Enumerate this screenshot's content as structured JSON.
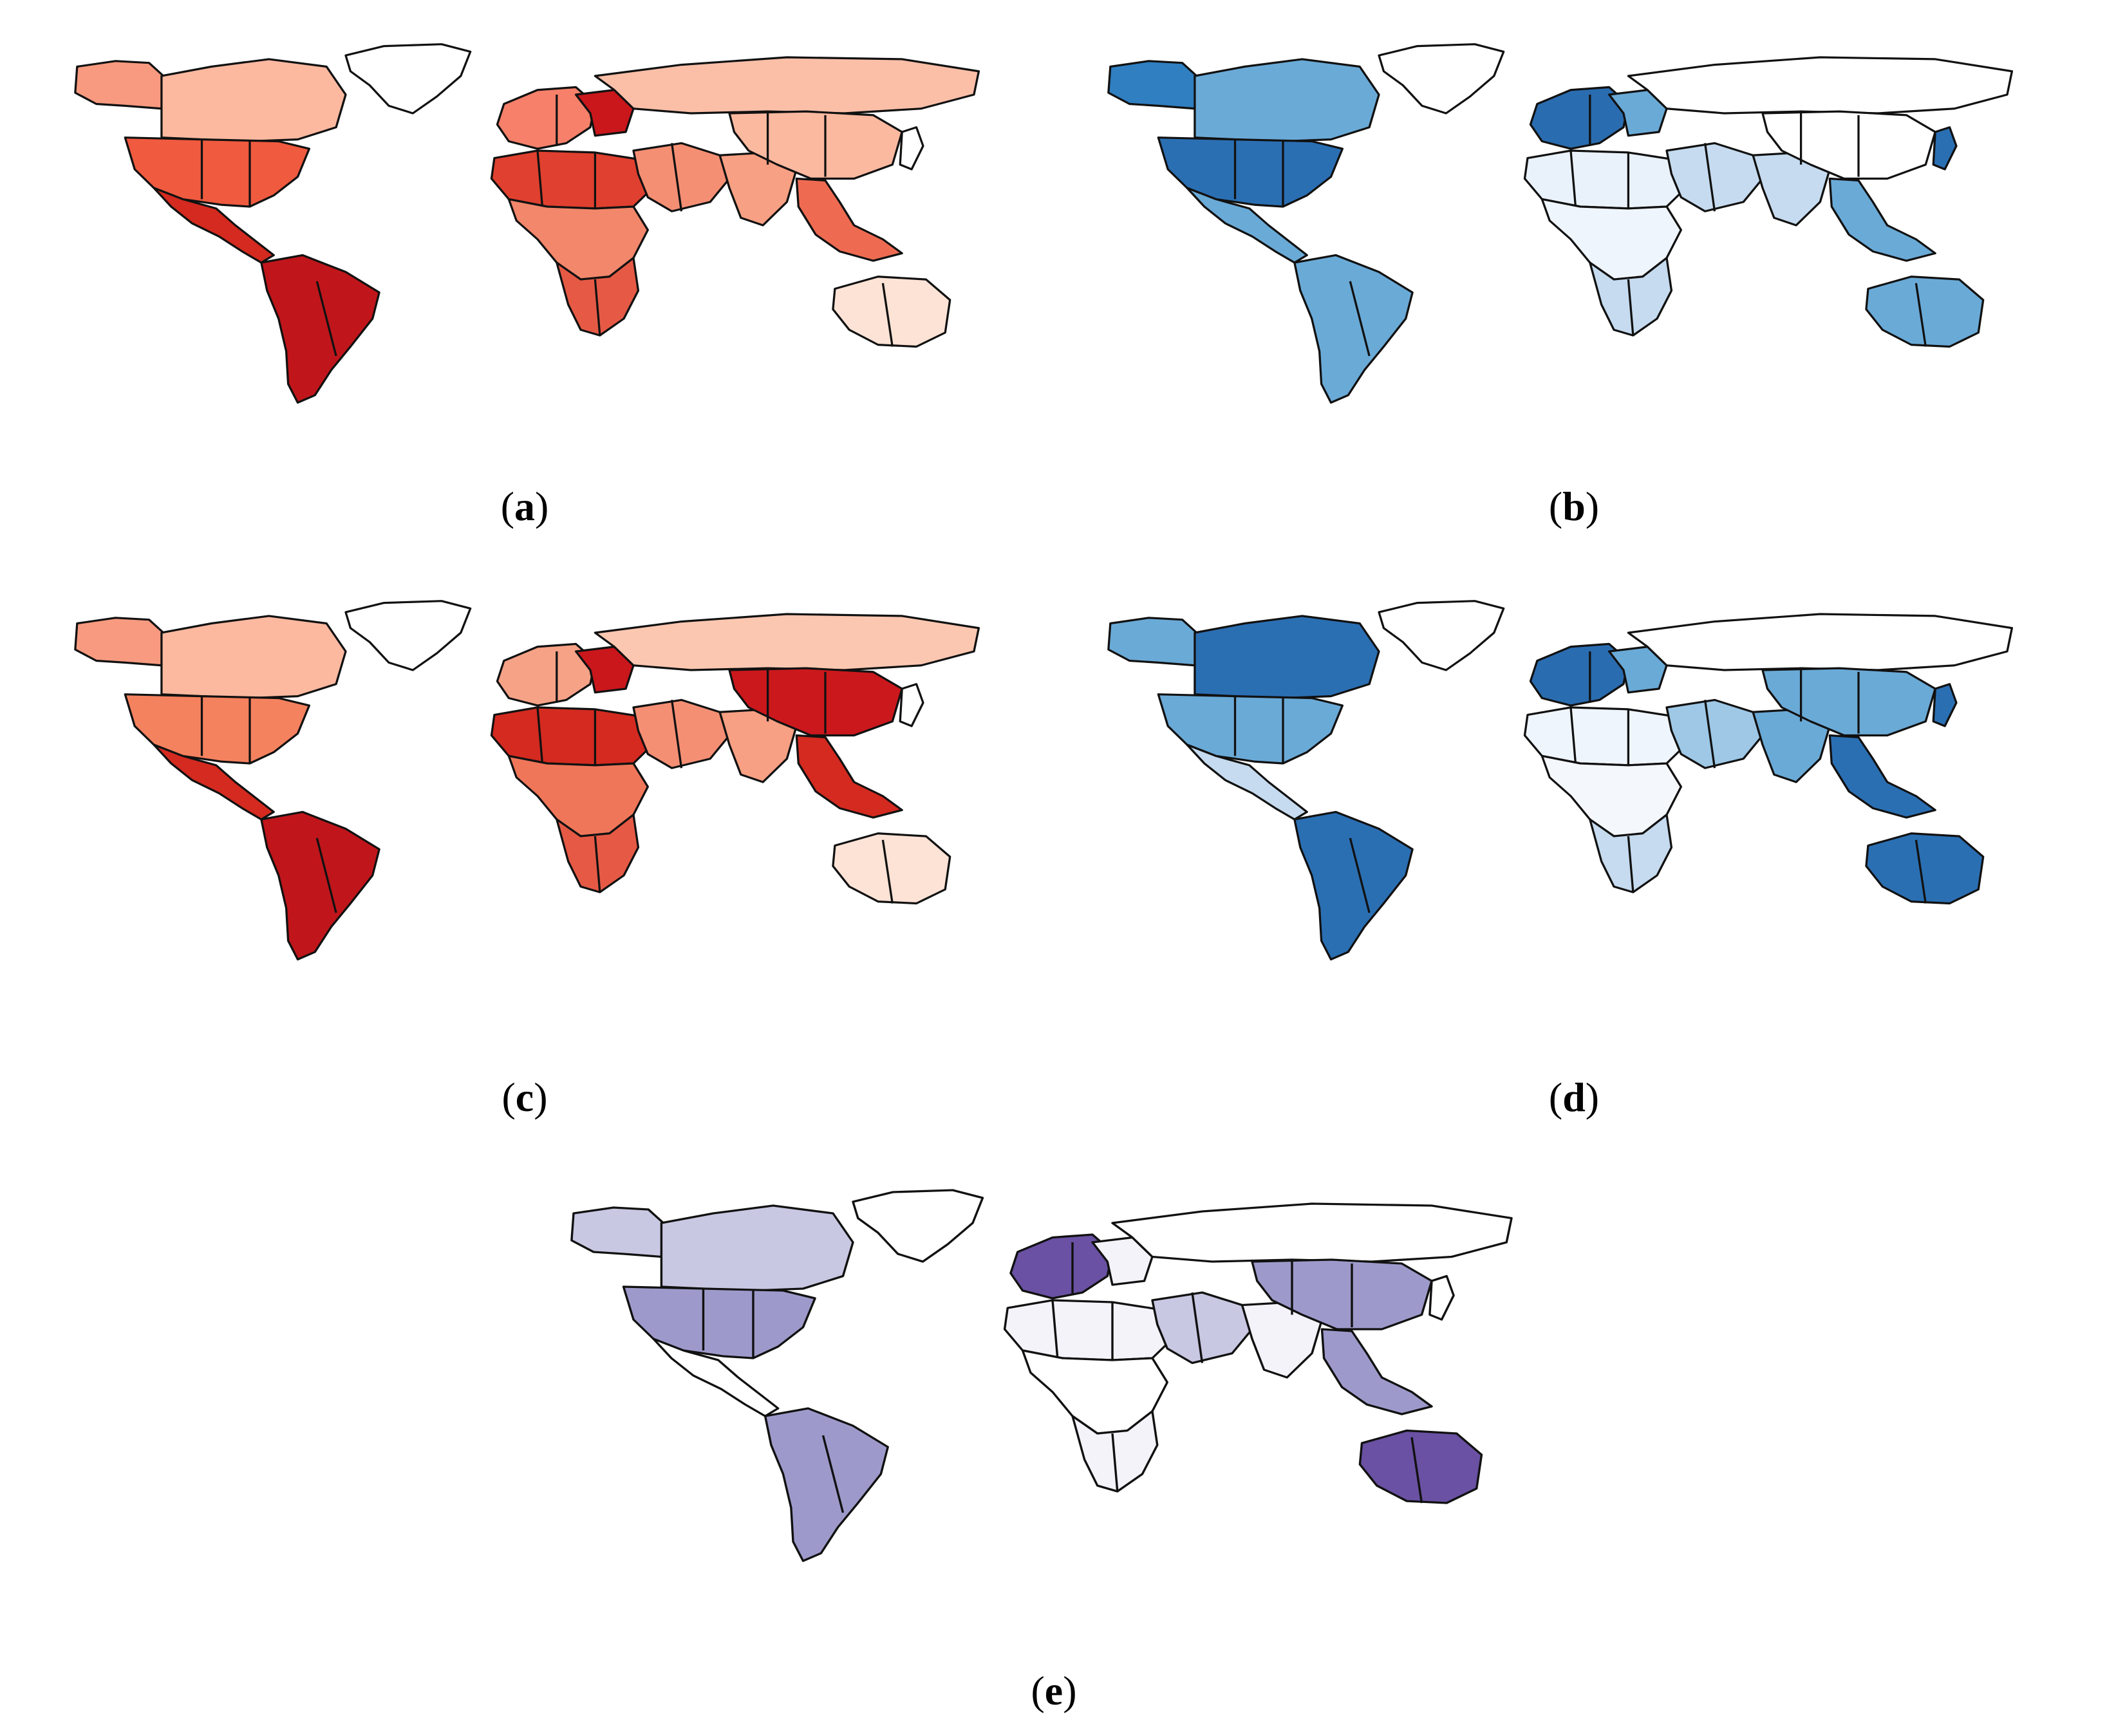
{
  "figure": {
    "panels": [
      {
        "id": "a",
        "caption_letter": "a",
        "palette": "reds",
        "colors": {
          "north_america_west": "#f79a7f",
          "canada_east": "#fcb9a0",
          "usa": "#f05a3f",
          "mexico_central_america": "#d42a20",
          "south_america": "#c0161b",
          "greenland": "#ffffff",
          "europe": "#f6806a",
          "east_europe": "#c9171c",
          "russia": "#fbbfa8",
          "north_africa": "#e0402f",
          "central_africa": "#f2876b",
          "southern_africa": "#e65a45",
          "middle_east": "#f58f74",
          "south_asia": "#f7a083",
          "china": "#fbb9a0",
          "southeast_asia": "#ee6b52",
          "australia": "#fde3d6",
          "japan": "#ffffff"
        }
      },
      {
        "id": "b",
        "caption_letter": "b",
        "palette": "blues",
        "colors": {
          "north_america_west": "#2f7fc1",
          "canada_east": "#6aaad7",
          "usa": "#2b6fb3",
          "mexico_central_america": "#6aaad7",
          "south_america": "#6aaad7",
          "greenland": "#ffffff",
          "europe": "#2a6cb0",
          "east_europe": "#6aaad7",
          "russia": "#ffffff",
          "north_africa": "#e9f2fa",
          "central_africa": "#eff5fc",
          "southern_africa": "#c6dbef",
          "middle_east": "#c6dbef",
          "south_asia": "#c6dbef",
          "china": "#ffffff",
          "southeast_asia": "#6aaad7",
          "australia": "#6aaad7",
          "japan": "#2b6fb3"
        }
      },
      {
        "id": "c",
        "caption_letter": "c",
        "palette": "reds",
        "colors": {
          "north_america_west": "#f79a7f",
          "canada_east": "#fcb9a0",
          "usa": "#f5825f",
          "mexico_central_america": "#d42a20",
          "south_america": "#c0161b",
          "greenland": "#ffffff",
          "europe": "#f6a287",
          "east_europe": "#c9171c",
          "russia": "#fcc7b0",
          "north_africa": "#d42a20",
          "central_africa": "#f0765a",
          "southern_africa": "#e65a45",
          "middle_east": "#f58f74",
          "south_asia": "#f7a083",
          "china": "#cb181d",
          "southeast_asia": "#d42a20",
          "australia": "#fde3d6",
          "japan": "#ffffff"
        }
      },
      {
        "id": "d",
        "caption_letter": "d",
        "palette": "blues",
        "colors": {
          "north_america_west": "#6aaad7",
          "canada_east": "#2b6fb3",
          "usa": "#6aaad7",
          "mexico_central_america": "#c6dbef",
          "south_america": "#2b6fb3",
          "greenland": "#ffffff",
          "europe": "#2a6cb0",
          "east_europe": "#6aaad7",
          "russia": "#ffffff",
          "north_africa": "#eff5fc",
          "central_africa": "#f4f8fd",
          "southern_africa": "#c6dbef",
          "middle_east": "#9ec8e6",
          "south_asia": "#6aaad7",
          "china": "#6aaad7",
          "southeast_asia": "#2b6fb3",
          "australia": "#2b6fb3",
          "japan": "#2b6fb3"
        }
      },
      {
        "id": "e",
        "caption_letter": "e",
        "palette": "purples",
        "colors": {
          "north_america_west": "#c9c8e3",
          "canada_east": "#c9c8e3",
          "usa": "#9d9acb",
          "mexico_central_america": "#ffffff",
          "south_america": "#9d9acb",
          "greenland": "#ffffff",
          "europe": "#6a51a3",
          "east_europe": "#f4f3fa",
          "russia": "#ffffff",
          "north_africa": "#f4f3fa",
          "central_africa": "#ffffff",
          "southern_africa": "#f4f3fa",
          "middle_east": "#c9c8e3",
          "south_asia": "#f4f3fa",
          "china": "#9d9acb",
          "southeast_asia": "#9d9acb",
          "australia": "#6a51a3",
          "japan": "#ffffff"
        }
      }
    ]
  }
}
